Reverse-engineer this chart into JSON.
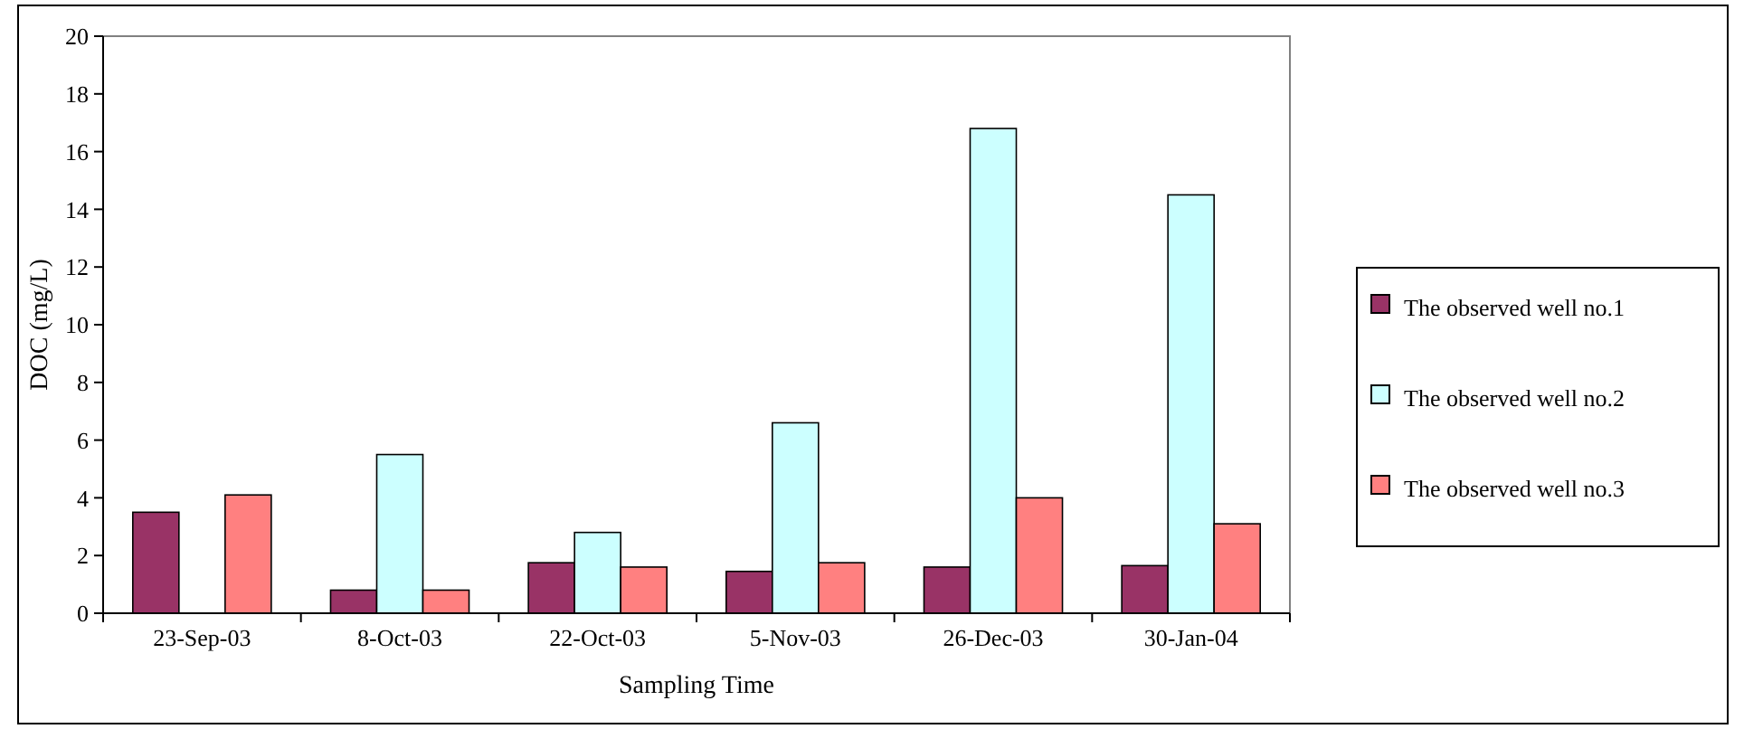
{
  "chart_data": {
    "type": "bar",
    "xlabel": "Sampling Time",
    "ylabel": "DOC (mg/L)",
    "categories": [
      "23-Sep-03",
      "8-Oct-03",
      "22-Oct-03",
      "5-Nov-03",
      "26-Dec-03",
      "30-Jan-04"
    ],
    "series": [
      {
        "name": "The observed well no.1",
        "color": "#993366",
        "values": [
          3.5,
          0.8,
          1.75,
          1.45,
          1.6,
          1.65
        ]
      },
      {
        "name": "The observed well no.2",
        "color": "#ccffff",
        "values": [
          null,
          5.5,
          2.8,
          6.6,
          16.8,
          14.5
        ]
      },
      {
        "name": "The observed well no.3",
        "color": "#ff8080",
        "values": [
          4.1,
          0.8,
          1.6,
          1.75,
          4.0,
          3.1
        ]
      }
    ],
    "ylim": [
      0,
      20
    ],
    "yticks": [
      0,
      2,
      4,
      6,
      8,
      10,
      12,
      14,
      16,
      18,
      20
    ],
    "grid": false,
    "legend": "right"
  }
}
